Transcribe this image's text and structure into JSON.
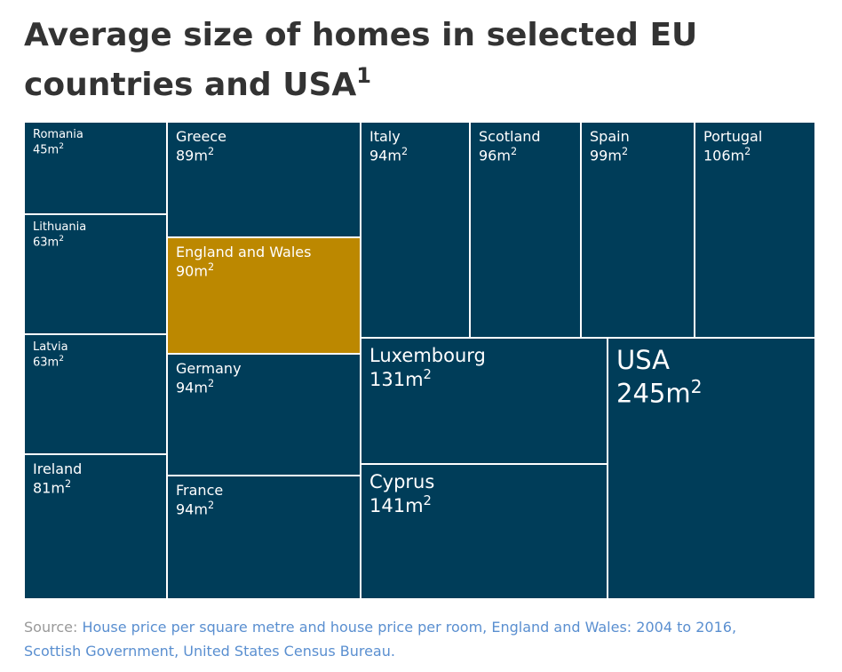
{
  "title": {
    "main": "Average size of homes in selected EU countries and USA",
    "footnote_mark": "1"
  },
  "source": {
    "prefix": "Source:",
    "link1": "House price per square metre and house price per room, England and Wales: 2004 to 2016,",
    "link2": "Scottish Government, United States Census Bureau."
  },
  "colors": {
    "tile": "#003d59",
    "highlight": "#bc8800",
    "border": "#ffffff"
  },
  "chart_data": {
    "type": "treemap",
    "unit": "m",
    "unit_superscript": "2",
    "items": [
      {
        "name": "Romania",
        "value": 45,
        "highlight": false
      },
      {
        "name": "Lithuania",
        "value": 63,
        "highlight": false
      },
      {
        "name": "Latvia",
        "value": 63,
        "highlight": false
      },
      {
        "name": "Ireland",
        "value": 81,
        "highlight": false
      },
      {
        "name": "Greece",
        "value": 89,
        "highlight": false
      },
      {
        "name": "England and Wales",
        "value": 90,
        "highlight": true
      },
      {
        "name": "Germany",
        "value": 94,
        "highlight": false
      },
      {
        "name": "France",
        "value": 94,
        "highlight": false
      },
      {
        "name": "Italy",
        "value": 94,
        "highlight": false
      },
      {
        "name": "Scotland",
        "value": 96,
        "highlight": false
      },
      {
        "name": "Spain",
        "value": 99,
        "highlight": false
      },
      {
        "name": "Portugal",
        "value": 106,
        "highlight": false
      },
      {
        "name": "Luxembourg",
        "value": 131,
        "highlight": false
      },
      {
        "name": "Cyprus",
        "value": 141,
        "highlight": false
      },
      {
        "name": "USA",
        "value": 245,
        "highlight": false
      }
    ]
  }
}
